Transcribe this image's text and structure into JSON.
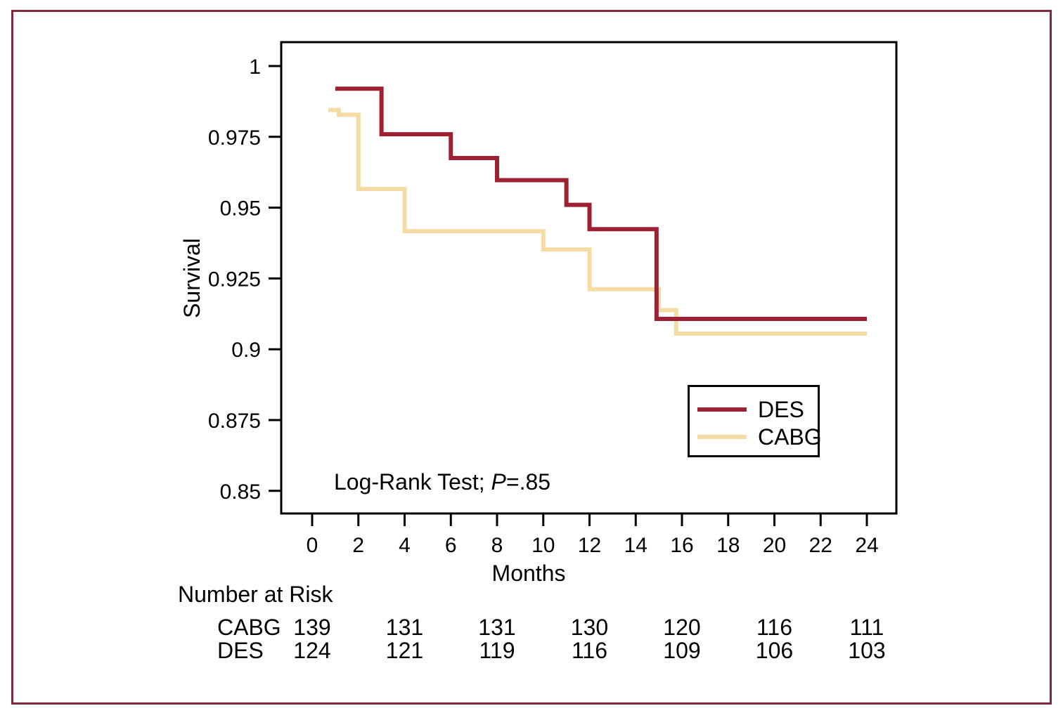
{
  "figure": {
    "outer_border_color": "#7E2A3C",
    "background": "#FFFFFF",
    "axis_color": "#000000"
  },
  "chart_data": {
    "type": "line",
    "subtype": "kaplan-meier-step",
    "title": "",
    "xlabel": "Months",
    "ylabel": "Survival",
    "x_ticks": [
      0,
      2,
      4,
      6,
      8,
      10,
      12,
      14,
      16,
      18,
      20,
      22,
      24
    ],
    "y_ticks": [
      1,
      0.975,
      0.95,
      0.925,
      0.9,
      0.875,
      0.85
    ],
    "y_tick_labels": [
      "1",
      "0.975",
      "0.95",
      "0.925",
      "0.9",
      "0.875",
      "0.85"
    ],
    "xlim": [
      -1.35,
      25.3
    ],
    "ylim": [
      0.842,
      1.009
    ],
    "grid": false,
    "legend": {
      "position": "inside-right",
      "entries": [
        "DES",
        "CABG"
      ]
    },
    "annotation": {
      "prefix": "Log-Rank Test; ",
      "p": "P",
      "suffix": "=.85"
    },
    "series": [
      {
        "name": "DES",
        "color": "#9E2033",
        "points": [
          [
            1,
            0.992
          ],
          [
            3,
            0.992
          ],
          [
            3,
            0.9759
          ],
          [
            6,
            0.9759
          ],
          [
            6,
            0.9675
          ],
          [
            8,
            0.9675
          ],
          [
            8,
            0.9597
          ],
          [
            11,
            0.9597
          ],
          [
            11,
            0.951
          ],
          [
            12,
            0.951
          ],
          [
            12,
            0.9424
          ],
          [
            14.9,
            0.9424
          ],
          [
            14.9,
            0.9107
          ],
          [
            24,
            0.9107
          ]
        ]
      },
      {
        "name": "CABG",
        "color": "#F5DCA5",
        "points": [
          [
            0.7,
            0.9845
          ],
          [
            1.15,
            0.9845
          ],
          [
            1.15,
            0.9828
          ],
          [
            2,
            0.9828
          ],
          [
            2,
            0.9566
          ],
          [
            4,
            0.9566
          ],
          [
            4,
            0.9417
          ],
          [
            10,
            0.9417
          ],
          [
            10,
            0.9352
          ],
          [
            12,
            0.9352
          ],
          [
            12,
            0.9212
          ],
          [
            15,
            0.9212
          ],
          [
            15,
            0.9138
          ],
          [
            15.75,
            0.9138
          ],
          [
            15.75,
            0.9055
          ],
          [
            24,
            0.9055
          ]
        ]
      }
    ],
    "risk_table": {
      "title": "Number at Risk",
      "months": [
        0,
        4,
        8,
        12,
        16,
        20,
        24
      ],
      "rows": [
        {
          "label": "CABG",
          "values": [
            139,
            131,
            131,
            130,
            120,
            116,
            111
          ]
        },
        {
          "label": "DES",
          "values": [
            124,
            121,
            119,
            116,
            109,
            106,
            103
          ]
        }
      ]
    }
  }
}
